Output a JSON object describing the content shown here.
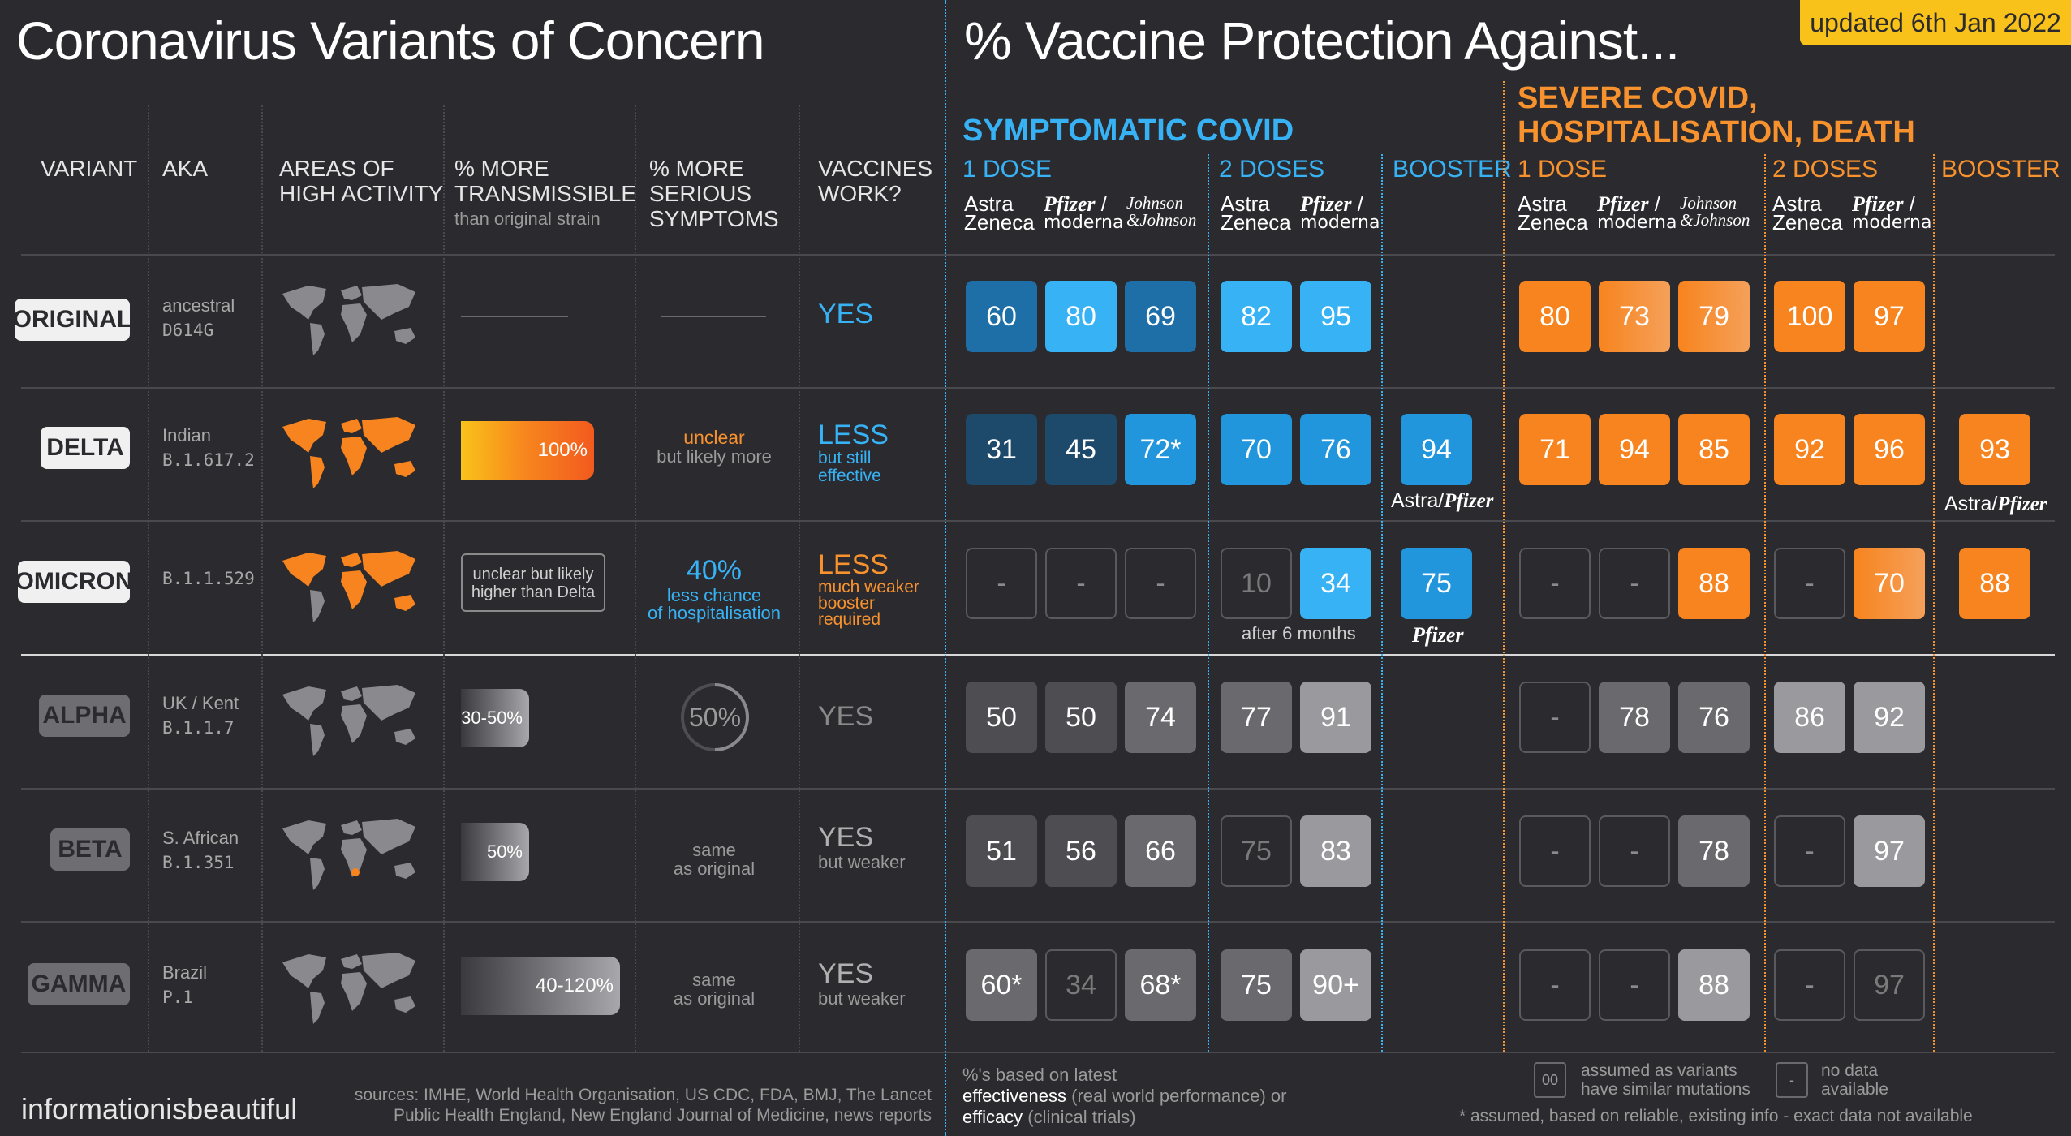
{
  "header": {
    "title_left": "Coronavirus Variants of Concern",
    "title_right": "% Vaccine Protection Against...",
    "updated_prefix": "updated ",
    "updated_date": "6th Jan 2022"
  },
  "columns": {
    "variant": "VARIANT",
    "aka": "AKA",
    "areas_1": "AREAS OF",
    "areas_2": "HIGH ACTIVITY",
    "trans_1": "% MORE",
    "trans_2": "TRANSMISSIBLE",
    "trans_sub": "than original strain",
    "serious_1": "% MORE",
    "serious_2": "SERIOUS",
    "serious_3": "SYMPTOMS",
    "vacc_1": "VACCINES",
    "vacc_2": "WORK?"
  },
  "groups": {
    "symptomatic": "SYMPTOMATIC COVID",
    "severe_1": "SEVERE COVID,",
    "severe_2": "HOSPITALISATION, DEATH",
    "one_dose": "1 DOSE",
    "two_doses": "2 DOSES",
    "booster": "BOOSTER"
  },
  "brands": {
    "astra_1": "Astra",
    "astra_2": "Zeneca",
    "pfizer": "Pfizer",
    "slash": "/",
    "moderna": "moderna",
    "jj_1": "Johnson",
    "jj_2": "&Johnson"
  },
  "variants": [
    {
      "name": "ORIGINAL",
      "aka": "ancestral",
      "code": "D614G",
      "vaccines": "YES"
    },
    {
      "name": "DELTA",
      "aka": "Indian",
      "code": "B.1.617.2",
      "trans": "100%",
      "serious_1": "unclear",
      "serious_2": "but likely more",
      "vaccines": "LESS",
      "vacc_sub_1": "but still",
      "vacc_sub_2": "effective"
    },
    {
      "name": "OMICRON",
      "code": "B.1.1.529",
      "trans_1": "unclear but likely",
      "trans_2": "higher than Delta",
      "serious_big": "40%",
      "serious_1": "less chance",
      "serious_2": "of hospitalisation",
      "vaccines": "LESS",
      "vacc_sub_1": "much weaker",
      "vacc_sub_2": "booster",
      "vacc_sub_3": "required"
    },
    {
      "name": "ALPHA",
      "aka": "UK / Kent",
      "code": "B.1.1.7",
      "trans": "30-50%",
      "serious": "50%",
      "vaccines": "YES"
    },
    {
      "name": "BETA",
      "aka": "S. African",
      "code": "B.1.351",
      "trans": "50%",
      "serious_1": "same",
      "serious_2": "as original",
      "vaccines": "YES",
      "vacc_sub_1": "but weaker"
    },
    {
      "name": "GAMMA",
      "aka": "Brazil",
      "code": "P.1",
      "trans": "40-120%",
      "serious_1": "same",
      "serious_2": "as original",
      "vaccines": "YES",
      "vacc_sub_1": "but weaker"
    }
  ],
  "cells": {
    "original": [
      "60",
      "80",
      "69",
      "82",
      "95",
      "80",
      "73",
      "79",
      "100",
      "97"
    ],
    "delta": [
      "31",
      "45",
      "72*",
      "70",
      "76",
      "94",
      "71",
      "94",
      "85",
      "92",
      "96",
      "93"
    ],
    "omicron": [
      "-",
      "-",
      "-",
      "10",
      "34",
      "75",
      "-",
      "-",
      "88",
      "-",
      "70",
      "88"
    ],
    "alpha": [
      "50",
      "50",
      "74",
      "77",
      "91",
      "-",
      "78",
      "76",
      "86",
      "92"
    ],
    "beta": [
      "51",
      "56",
      "66",
      "75",
      "83",
      "-",
      "-",
      "78",
      "-",
      "97"
    ],
    "gamma": [
      "60*",
      "34",
      "68*",
      "75",
      "90+",
      "-",
      "-",
      "88",
      "-",
      "97"
    ]
  },
  "notes": {
    "astra_pfizer_1": "Astra/",
    "astra_pfizer_2": "Pfizer",
    "after_6_months": "after 6 months",
    "pfizer_only": "Pfizer"
  },
  "footer": {
    "brand": "informationisbeautiful",
    "sources_1": "sources: IMHE, World Health Organisation, US CDC, FDA, BMJ, The Lancet",
    "sources_2": "Public Health England, New England Journal of Medicine, news reports",
    "note_1": "%'s based on latest",
    "note_2a": "effectiveness",
    "note_2b": " (real world performance) or",
    "note_3a": "efficacy",
    "note_3b": " (clinical trials)",
    "legend_box": "00",
    "legend_1": "assumed as variants",
    "legend_2": "have similar mutations",
    "legend_dash": "-",
    "legend_3": "no data",
    "legend_4": "available",
    "assumed": "* assumed,  based on reliable, existing info - exact data not available"
  },
  "colors": {
    "background": "#2b2a2e",
    "blue_dark": "#1e6fa8",
    "blue_mid": "#2196dc",
    "blue_light": "#37b3f5",
    "navy": "#1d4a6b",
    "orange": "#f7841e",
    "orange_light": "#f5a05a",
    "gray_dark": "#4e4e52",
    "gray_mid": "#6a6a6e",
    "gray_light": "#9a9a9e",
    "yellow": "#f9c21a"
  }
}
